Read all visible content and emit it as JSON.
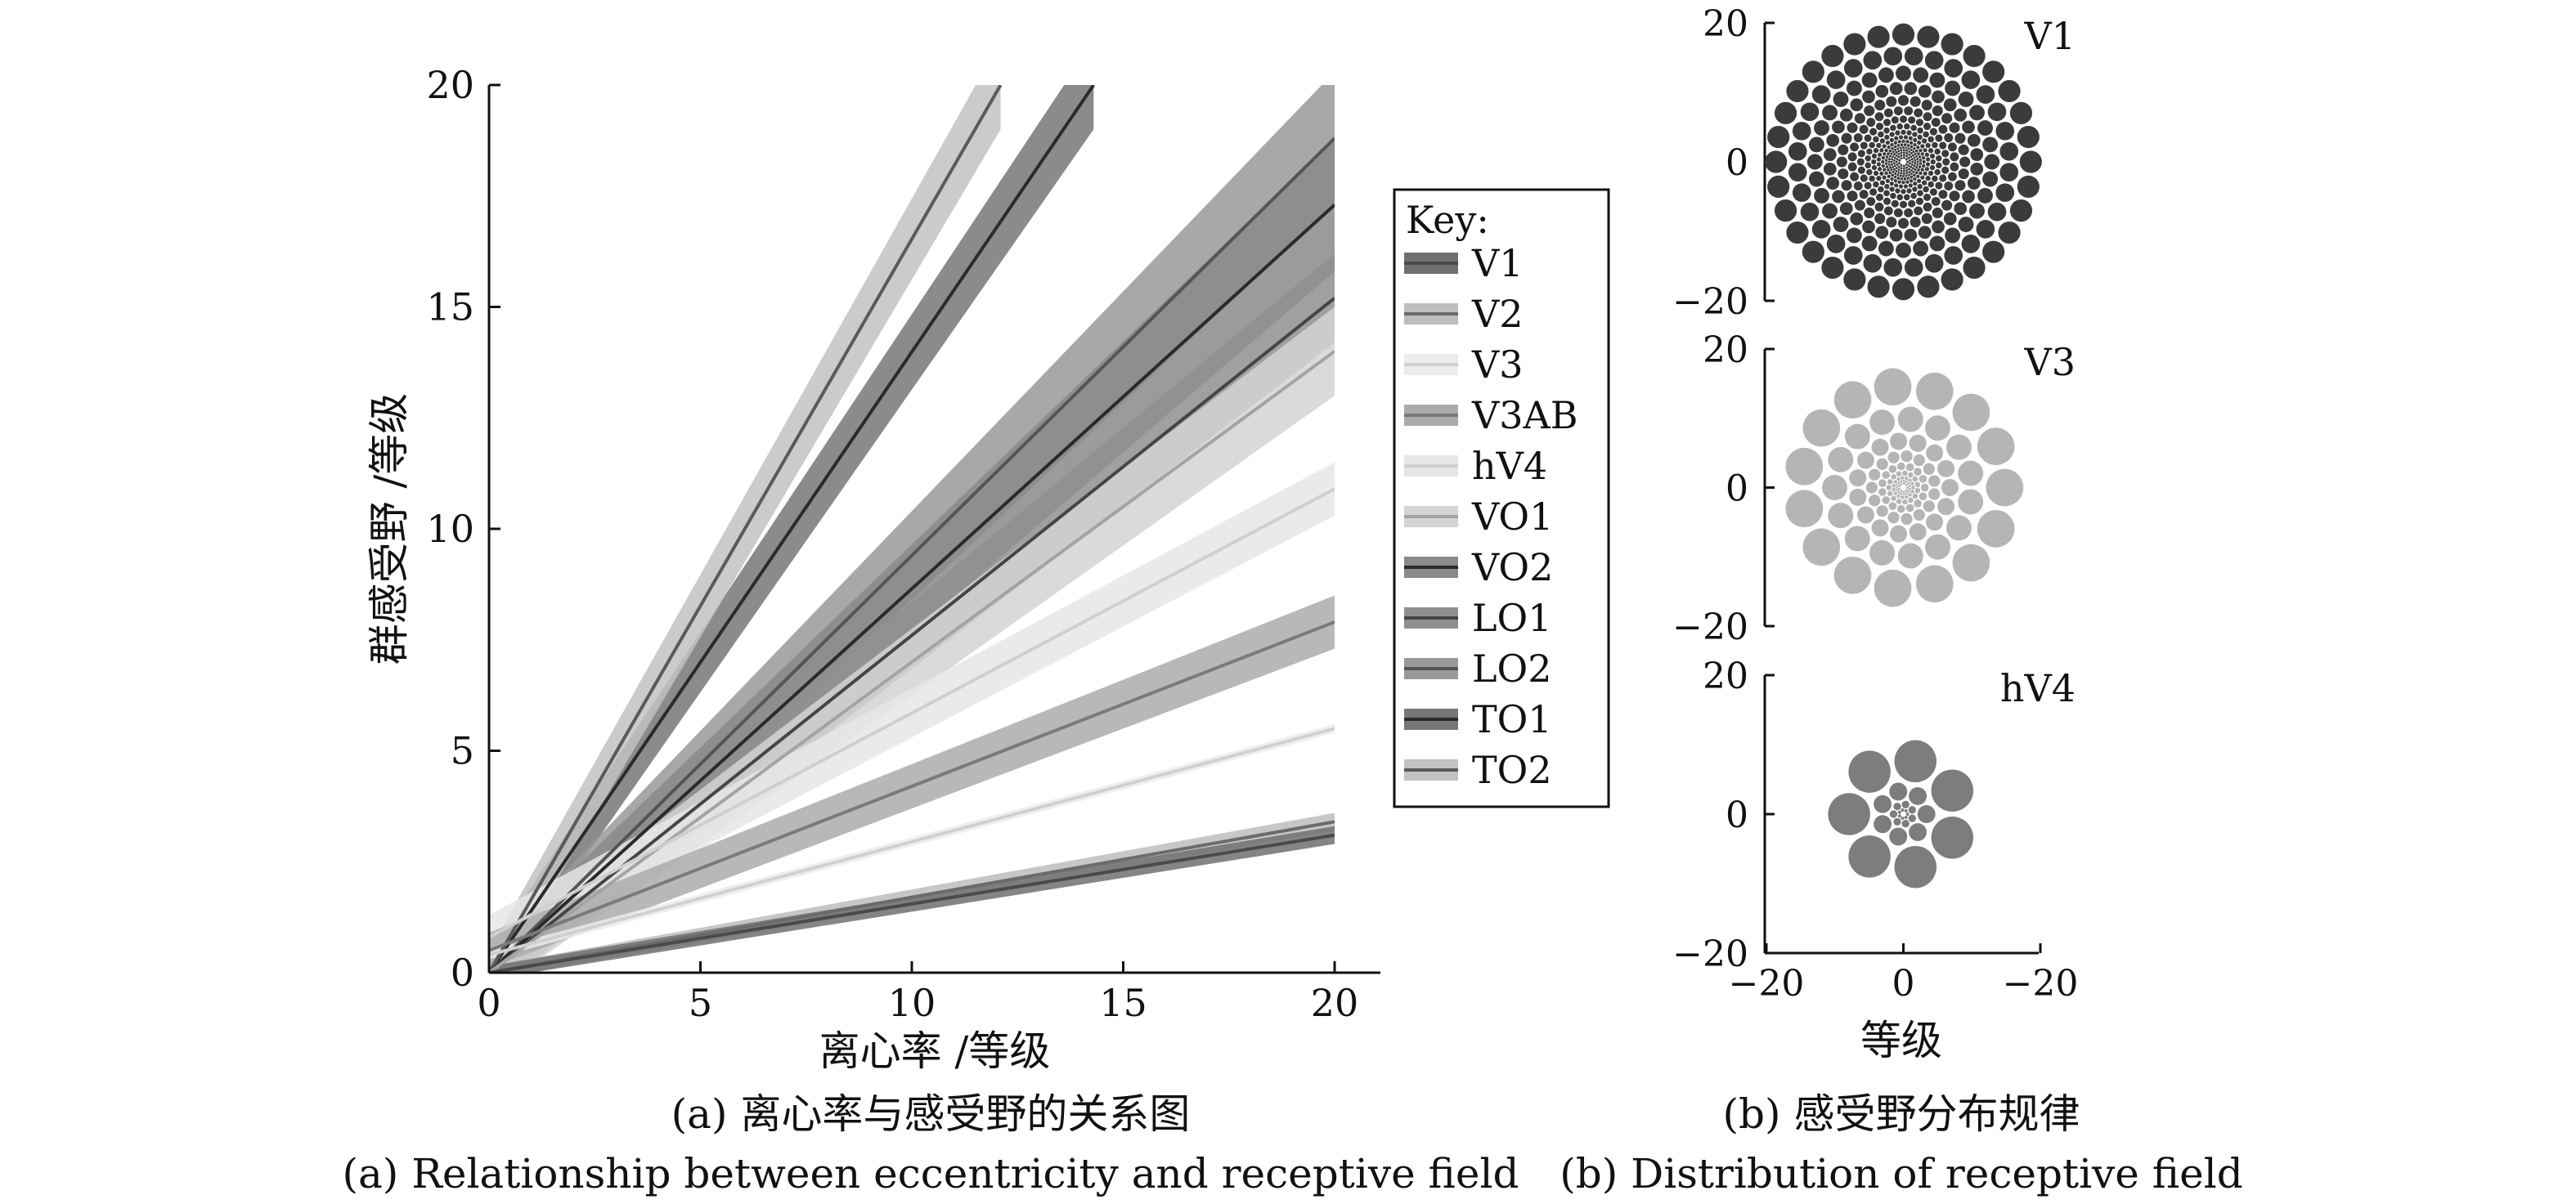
{
  "chart_data": [
    {
      "type": "line",
      "xlabel": "离心率 /等级",
      "ylabel": "群感受野 /等级",
      "xlim": [
        0,
        20
      ],
      "ylim": [
        0,
        20
      ],
      "xticks": [
        "0",
        "5",
        "10",
        "15",
        "20"
      ],
      "yticks": [
        "0",
        "5",
        "10",
        "15",
        "20"
      ],
      "legend_title": "Key:",
      "legend_position": "right",
      "caption_cn": "(a) 离心率与感受野的关系图",
      "caption_en": "(a) Relationship between eccentricity and receptive field",
      "series": [
        {
          "name": "V1",
          "color": "#4a4a4a",
          "band_color": "#707070",
          "x": [
            0,
            20
          ],
          "y": [
            0,
            3.1
          ],
          "band": [
            0.15,
            0.2
          ]
        },
        {
          "name": "V2",
          "color": "#6b6b6b",
          "band_color": "#bdbdbd",
          "x": [
            0,
            20
          ],
          "y": [
            0,
            3.4
          ],
          "band": [
            0.15,
            0.2
          ]
        },
        {
          "name": "V3",
          "color": "#d0d0d0",
          "band_color": "#ececec",
          "x": [
            0,
            20
          ],
          "y": [
            0.4,
            5.5
          ],
          "band": [
            0.1,
            0.1
          ]
        },
        {
          "name": "V3AB",
          "color": "#7a7a7a",
          "band_color": "#ababab",
          "x": [
            0,
            20
          ],
          "y": [
            0.5,
            7.9
          ],
          "band": [
            0.4,
            0.6
          ]
        },
        {
          "name": "hV4",
          "color": "#cfcfcf",
          "band_color": "#e6e6e6",
          "x": [
            0,
            20
          ],
          "y": [
            0.8,
            10.9
          ],
          "band": [
            0.5,
            0.6
          ]
        },
        {
          "name": "VO1",
          "color": "#a3a3a3",
          "band_color": "#d4d4d4",
          "x": [
            0,
            20
          ],
          "y": [
            0,
            14.0
          ],
          "band": [
            0.5,
            1.0
          ]
        },
        {
          "name": "VO2",
          "color": "#2a2a2a",
          "band_color": "#8a8a8a",
          "x": [
            0,
            20
          ],
          "y": [
            0,
            17.3
          ],
          "band": [
            0.5,
            1.5
          ]
        },
        {
          "name": "LO1",
          "color": "#454545",
          "band_color": "#8f8f8f",
          "x": [
            0,
            20
          ],
          "y": [
            0,
            15.2
          ],
          "band": [
            0.5,
            1.0
          ]
        },
        {
          "name": "LO2",
          "color": "#555555",
          "band_color": "#999999",
          "x": [
            0,
            20
          ],
          "y": [
            0,
            18.8
          ],
          "band": [
            0.5,
            1.5
          ]
        },
        {
          "name": "TO1",
          "color": "#2b2b2b",
          "band_color": "#777777",
          "x": [
            0,
            14.3
          ],
          "y": [
            0,
            20
          ],
          "band": [
            0.5,
            1.0
          ]
        },
        {
          "name": "TO2",
          "color": "#5a5a5a",
          "band_color": "#c2c2c2",
          "x": [
            0,
            12.1
          ],
          "y": [
            0,
            20
          ],
          "band": [
            0.5,
            1.0
          ]
        }
      ]
    },
    {
      "type": "scatter",
      "title": "V1",
      "xlim": [
        -20,
        20
      ],
      "ylim": [
        -20,
        20
      ],
      "yticks": [
        "20",
        "0",
        "−20"
      ],
      "marker_color": "#3b3b3b",
      "layout": "concentric rings of receptive-field discs, size increasing with eccentricity",
      "disc_radius_per_eccentricity": 0.09,
      "max_eccentricity": 18.5
    },
    {
      "type": "scatter",
      "title": "V3",
      "xlim": [
        -20,
        20
      ],
      "ylim": [
        -20,
        20
      ],
      "yticks": [
        "20",
        "0",
        "−20"
      ],
      "marker_color": "#b5b5b5",
      "layout": "concentric rings of receptive-field discs, size increasing with eccentricity",
      "disc_radius_per_eccentricity": 0.19,
      "max_eccentricity": 15.5
    },
    {
      "type": "scatter",
      "title": "hV4",
      "xlim": [
        -20,
        20
      ],
      "ylim": [
        -20,
        20
      ],
      "yticks": [
        "20",
        "0",
        "−20"
      ],
      "xticks": [
        "−20",
        "0",
        "−20"
      ],
      "xlabel": "等级",
      "marker_color": "#7d7d7d",
      "layout": "concentric rings of receptive-field discs, size increasing with eccentricity",
      "disc_radius_per_eccentricity": 0.4,
      "max_eccentricity": 14
    }
  ],
  "caption_b_cn": "(b) 感受野分布规律",
  "caption_b_en": "(b) Distribution of receptive field"
}
